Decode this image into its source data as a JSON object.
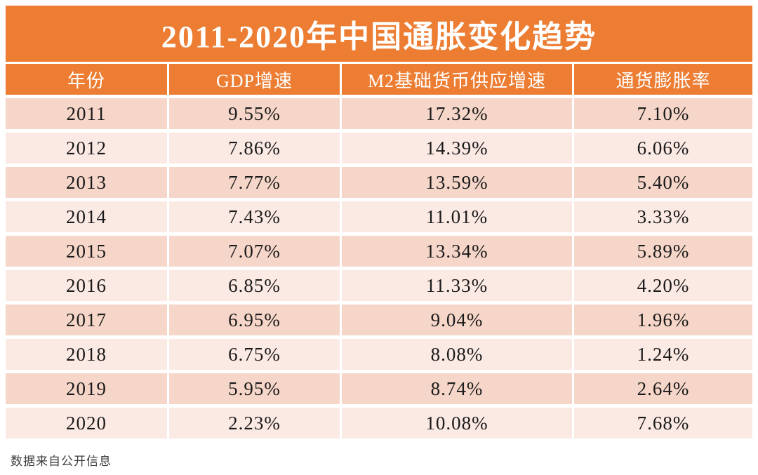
{
  "title": "2011-2020年中国通胀变化趋势",
  "footer_note": "数据来自公开信息",
  "colors": {
    "accent_orange": "#EC7D33",
    "row_band_dark": "#F6D6C9",
    "row_band_light": "#FBE9E4",
    "header_text": "#FFFFFF",
    "cell_text": "#1A1A1A",
    "footer_text": "#3D3D3D"
  },
  "chart_data": {
    "type": "table",
    "title": "2011-2020年中国通胀变化趋势",
    "columns": [
      "年份",
      "GDP增速",
      "M2基础货币供应增速",
      "通货膨胀率"
    ],
    "rows": [
      [
        "2011",
        "9.55%",
        "17.32%",
        "7.10%"
      ],
      [
        "2012",
        "7.86%",
        "14.39%",
        "6.06%"
      ],
      [
        "2013",
        "7.77%",
        "13.59%",
        "5.40%"
      ],
      [
        "2014",
        "7.43%",
        "11.01%",
        "3.33%"
      ],
      [
        "2015",
        "7.07%",
        "13.34%",
        "5.89%"
      ],
      [
        "2016",
        "6.85%",
        "11.33%",
        "4.20%"
      ],
      [
        "2017",
        "6.95%",
        "9.04%",
        "1.96%"
      ],
      [
        "2018",
        "6.75%",
        "8.08%",
        "1.24%"
      ],
      [
        "2019",
        "5.95%",
        "8.74%",
        "2.64%"
      ],
      [
        "2020",
        "2.23%",
        "10.08%",
        "7.68%"
      ]
    ],
    "series_units": "percent",
    "source_note": "数据来自公开信息",
    "layout_hints": {
      "banded_rows": true,
      "first_band": "dark",
      "header_background": "orange",
      "grid": "white gaps between cells"
    }
  }
}
